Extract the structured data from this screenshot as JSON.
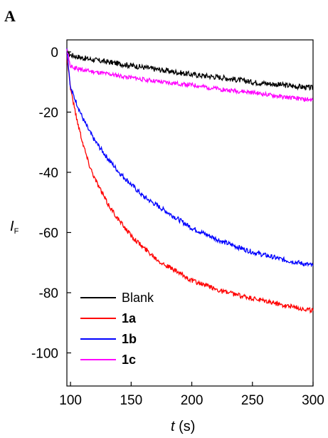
{
  "chart_data": {
    "type": "line",
    "panel_label": "A",
    "xlabel": {
      "var": "t",
      "unit": " (s)"
    },
    "ylabel": {
      "var": "I",
      "sub": "F"
    },
    "xlim": [
      97,
      300
    ],
    "ylim": [
      -111,
      4
    ],
    "xticks": [
      100,
      150,
      200,
      250,
      300
    ],
    "yticks": [
      0,
      -20,
      -40,
      -60,
      -80,
      -100
    ],
    "grid": false,
    "legend_position": "bottom-left",
    "series": [
      {
        "name": "Blank",
        "bold": false,
        "color": "#000000",
        "x": [
          97,
          100,
          110,
          125,
          150,
          175,
          200,
          225,
          250,
          275,
          300
        ],
        "y": [
          0,
          -1,
          -2,
          -3,
          -4.5,
          -6,
          -7.5,
          -8.5,
          -10,
          -11,
          -12
        ]
      },
      {
        "name": "1a",
        "bold": true,
        "color": "#ff0000",
        "x": [
          97,
          100,
          105,
          110,
          115,
          120,
          130,
          140,
          150,
          160,
          175,
          200,
          225,
          250,
          275,
          300
        ],
        "y": [
          -1,
          -12,
          -22,
          -30,
          -37,
          -42,
          -50,
          -56,
          -61,
          -65,
          -70,
          -76,
          -79.5,
          -82,
          -84,
          -86
        ]
      },
      {
        "name": "1b",
        "bold": true,
        "color": "#0000ff",
        "x": [
          97,
          100,
          105,
          110,
          115,
          120,
          130,
          140,
          150,
          160,
          175,
          200,
          225,
          250,
          275,
          300
        ],
        "y": [
          1,
          -12,
          -17,
          -22,
          -26,
          -29.5,
          -35,
          -40,
          -44,
          -48,
          -52,
          -58.5,
          -63,
          -66.5,
          -69,
          -71
        ]
      },
      {
        "name": "1c",
        "bold": true,
        "color": "#ff00ff",
        "x": [
          97,
          100,
          110,
          125,
          150,
          175,
          200,
          225,
          250,
          275,
          300
        ],
        "y": [
          1,
          -5,
          -6,
          -7,
          -8.5,
          -10,
          -11,
          -12.5,
          -13.5,
          -15,
          -16
        ]
      }
    ]
  }
}
